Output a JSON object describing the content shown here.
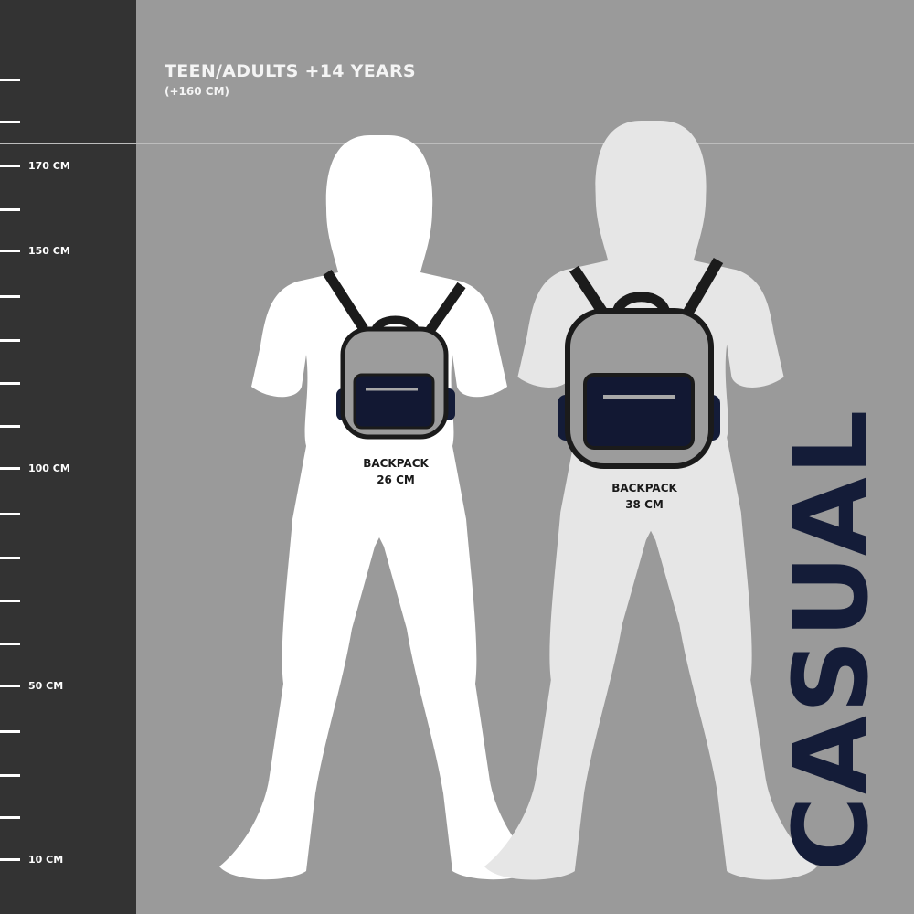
{
  "header": {
    "title": "TEEN/ADULTS +14 YEARS",
    "subtitle": "(+160 CM)"
  },
  "ruler": {
    "labels": [
      "170 CM",
      "150 CM",
      "100 CM",
      "50 CM",
      "10 CM"
    ]
  },
  "figures": [
    {
      "backpack_label": "BACKPACK",
      "backpack_size": "26 CM"
    },
    {
      "backpack_label": "BACKPACK",
      "backpack_size": "38 CM"
    }
  ],
  "brand_word": "CASUAL",
  "colors": {
    "ruler_bg": "#333333",
    "background": "#9a9a9a",
    "navy": "#141c38",
    "backpack_gray": "#9c9c9c"
  }
}
